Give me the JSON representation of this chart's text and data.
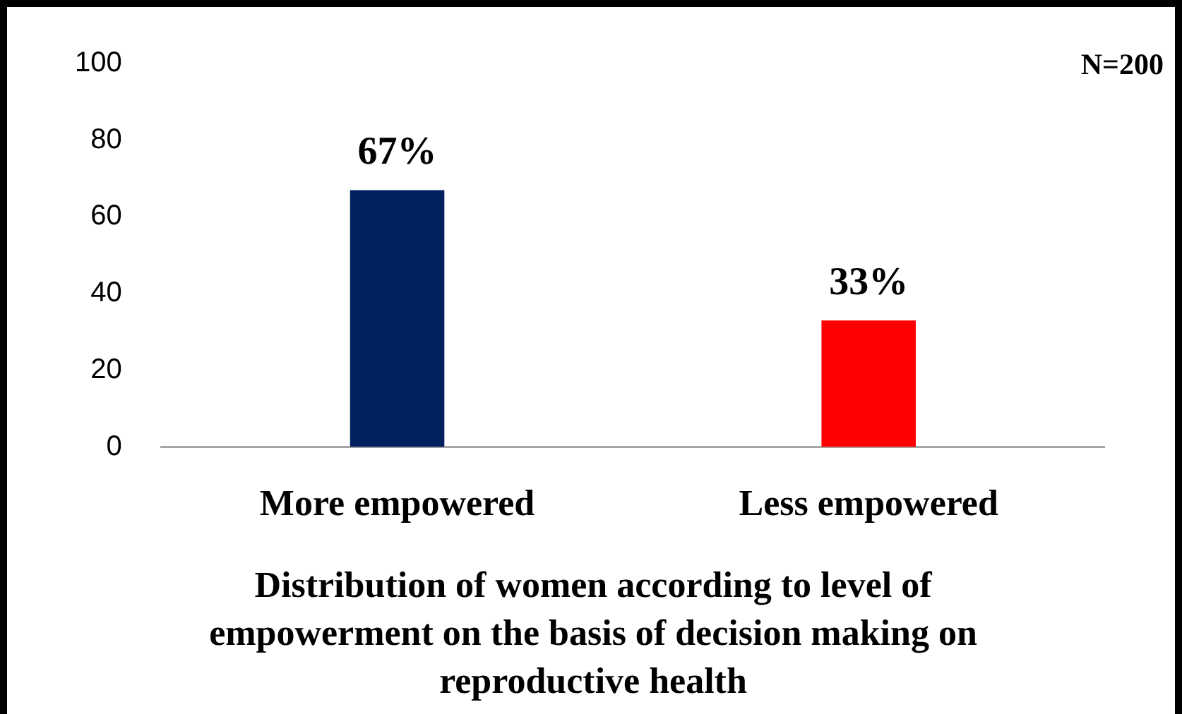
{
  "chart_data": {
    "type": "bar",
    "title": "Distribution of women according to level of empowerment on the basis of decision making on reproductive health",
    "categories": [
      "More empowered",
      "Less empowered"
    ],
    "values": [
      67,
      33
    ],
    "colors": [
      "#002060",
      "#ff0000"
    ],
    "value_labels": [
      "67%",
      "33%"
    ],
    "ylim": [
      0,
      100
    ],
    "yticks": [
      0,
      20,
      40,
      60,
      80,
      100
    ],
    "grid": false,
    "legend": false,
    "annotations": [
      "N=200"
    ]
  }
}
